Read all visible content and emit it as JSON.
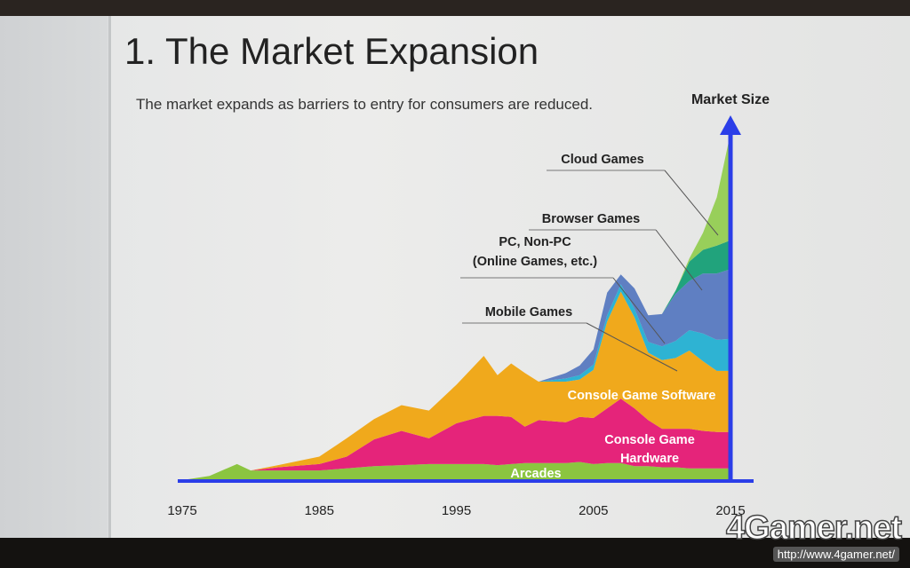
{
  "slide": {
    "title": "1.  The Market Expansion",
    "subtitle": "The market expands as barriers to entry for consumers are reduced."
  },
  "watermark": {
    "logo_text": "4Gamer.net",
    "url": "http://www.4gamer.net/"
  },
  "chart_data": {
    "type": "area",
    "stacked": true,
    "title": "",
    "xlabel": "",
    "ylabel": "Market Size",
    "xlim": [
      1975,
      2015
    ],
    "y_axis_visible_ticks": false,
    "x_tick_labels": [
      "1975",
      "1985",
      "1995",
      "2005",
      "2015"
    ],
    "x": [
      1975,
      1977,
      1979,
      1980,
      1982,
      1985,
      1987,
      1989,
      1991,
      1993,
      1995,
      1997,
      1998,
      1999,
      2000,
      2001,
      2003,
      2004,
      2005,
      2006,
      2007,
      2008,
      2009,
      2010,
      2011,
      2012,
      2013,
      2014,
      2015
    ],
    "series": [
      {
        "name": "Arcades",
        "color": "#8bc540",
        "values": [
          0,
          0.4,
          1.5,
          0.9,
          0.9,
          0.9,
          1.1,
          1.3,
          1.4,
          1.5,
          1.5,
          1.5,
          1.4,
          1.5,
          1.6,
          1.6,
          1.6,
          1.7,
          1.5,
          1.6,
          1.6,
          1.3,
          1.3,
          1.2,
          1.2,
          1.1,
          1.1,
          1.1,
          1.1
        ]
      },
      {
        "name": "Console Game Hardware",
        "color": "#e5247a",
        "values": [
          0,
          0,
          0,
          0,
          0.3,
          0.6,
          1.1,
          2.5,
          3.2,
          2.4,
          3.8,
          4.5,
          4.6,
          4.4,
          3.4,
          4.0,
          3.8,
          4.2,
          4.3,
          5.1,
          6.0,
          5.4,
          4.3,
          3.6,
          3.6,
          3.7,
          3.5,
          3.4,
          3.4
        ]
      },
      {
        "name": "Console Game Software",
        "color": "#f0a91c",
        "values": [
          0,
          0,
          0,
          0,
          0.2,
          0.7,
          1.7,
          1.9,
          2.4,
          2.6,
          3.6,
          5.6,
          3.8,
          5.0,
          5.0,
          3.6,
          3.8,
          3.5,
          4.5,
          8.1,
          10.0,
          8.5,
          6.3,
          6.4,
          6.6,
          7.3,
          6.5,
          5.7,
          5.7
        ]
      },
      {
        "name": "Mobile Games",
        "color": "#2eb3d3",
        "values": [
          0,
          0,
          0,
          0,
          0,
          0,
          0,
          0,
          0,
          0,
          0,
          0,
          0,
          0,
          0,
          0,
          0.3,
          0.4,
          0.5,
          0.6,
          0.7,
          0.8,
          1.0,
          1.3,
          1.6,
          1.9,
          2.6,
          2.9,
          3.0
        ]
      },
      {
        "name": "PC,  Non-PC\n(Online Games, etc.)",
        "color": "#5f7fc2",
        "values": [
          0,
          0,
          0,
          0,
          0,
          0,
          0,
          0,
          0,
          0,
          0,
          0,
          0,
          0,
          0,
          0,
          0.5,
          0.9,
          1.4,
          2.1,
          0.9,
          1.9,
          2.5,
          3.0,
          4.4,
          4.6,
          5.6,
          6.2,
          6.5
        ]
      },
      {
        "name": "Browser Games",
        "color": "#21a37c",
        "values": [
          0,
          0,
          0,
          0,
          0,
          0,
          0,
          0,
          0,
          0,
          0,
          0,
          0,
          0,
          0,
          0,
          0,
          0,
          0,
          0,
          0,
          0,
          0,
          0,
          0.3,
          1.8,
          2.2,
          2.6,
          2.7
        ]
      },
      {
        "name": "Cloud Games",
        "color": "#98cf5a",
        "values": [
          0,
          0,
          0,
          0,
          0,
          0,
          0,
          0,
          0,
          0,
          0,
          0,
          0,
          0,
          0,
          0,
          0,
          0,
          0,
          0,
          0,
          0,
          0,
          0,
          0,
          0.3,
          1.6,
          4.5,
          10.0
        ]
      }
    ],
    "inside_labels": [
      "Arcades",
      "Console Game Hardware",
      "Console Game Software"
    ],
    "callout_labels": [
      "Mobile Games",
      "PC,  Non-PC\n(Online Games, etc.)",
      "Browser Games",
      "Cloud Games"
    ],
    "x_axis_color": "#2b3ee8",
    "y_axis_color": "#2b3ee8"
  }
}
